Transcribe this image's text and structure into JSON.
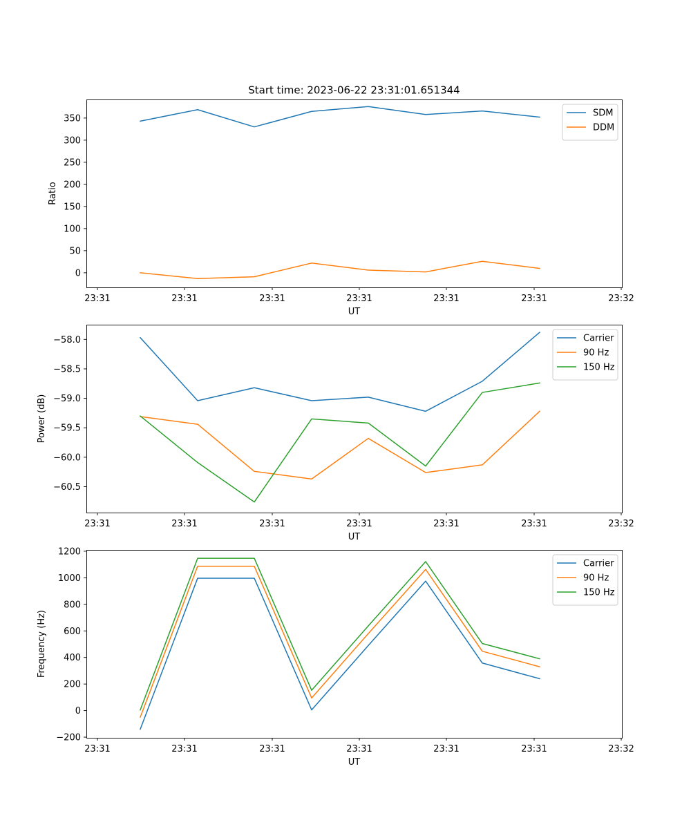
{
  "figure": {
    "title": "Start time: 2023-06-22 23:31:01.651344"
  },
  "chart_data": [
    {
      "type": "line",
      "title": "Start time: 2023-06-22 23:31:01.651344",
      "xlabel": "UT",
      "ylabel": "Ratio",
      "x_tick_labels": [
        "23:31",
        "23:31",
        "23:31",
        "23:31",
        "23:31",
        "23:31",
        "23:32"
      ],
      "ylim": [
        -33,
        392
      ],
      "y_ticks": [
        0,
        50,
        100,
        150,
        200,
        250,
        300,
        350
      ],
      "legend_position": "top-right",
      "grid": false,
      "series": [
        {
          "name": "SDM",
          "color": "#1f77b4",
          "values": [
            343,
            369,
            330,
            365,
            376,
            358,
            366,
            352
          ]
        },
        {
          "name": "DDM",
          "color": "#ff7f0e",
          "values": [
            0,
            -13,
            -9,
            22,
            6,
            2,
            26,
            10
          ]
        }
      ]
    },
    {
      "type": "line",
      "title": "",
      "xlabel": "UT",
      "ylabel": "Power (dB)",
      "x_tick_labels": [
        "23:31",
        "23:31",
        "23:31",
        "23:31",
        "23:31",
        "23:31",
        "23:32"
      ],
      "ylim": [
        -60.94,
        -57.75
      ],
      "y_ticks": [
        -60.5,
        -60.0,
        -59.5,
        -59.0,
        -58.5,
        -58.0
      ],
      "y_tick_labels": [
        "−60.5",
        "−60.0",
        "−59.5",
        "−59.0",
        "−58.5",
        "−58.0"
      ],
      "legend_position": "top-right",
      "grid": false,
      "series": [
        {
          "name": "Carrier",
          "color": "#1f77b4",
          "values": [
            -57.97,
            -59.04,
            -58.82,
            -59.04,
            -58.98,
            -59.22,
            -58.71,
            -57.88
          ]
        },
        {
          "name": "90 Hz",
          "color": "#ff7f0e",
          "values": [
            -59.31,
            -59.44,
            -60.24,
            -60.37,
            -59.68,
            -60.26,
            -60.13,
            -59.22
          ]
        },
        {
          "name": "150 Hz",
          "color": "#2ca02c",
          "values": [
            -59.3,
            -60.09,
            -60.76,
            -59.35,
            -59.42,
            -60.15,
            -58.9,
            -58.74
          ]
        }
      ]
    },
    {
      "type": "line",
      "title": "",
      "xlabel": "UT",
      "ylabel": "Frequency (Hz)",
      "x_tick_labels": [
        "23:31",
        "23:31",
        "23:31",
        "23:31",
        "23:31",
        "23:31",
        "23:32"
      ],
      "ylim": [
        -205,
        1210
      ],
      "y_ticks": [
        -200,
        0,
        200,
        400,
        600,
        800,
        1000,
        1200
      ],
      "y_tick_labels": [
        "−200",
        "0",
        "200",
        "400",
        "600",
        "800",
        "1000",
        "1200"
      ],
      "legend_position": "top-right",
      "grid": false,
      "series": [
        {
          "name": "Carrier",
          "color": "#1f77b4",
          "values": [
            -140,
            997,
            997,
            5,
            490,
            975,
            358,
            240
          ]
        },
        {
          "name": "90 Hz",
          "color": "#ff7f0e",
          "values": [
            -50,
            1087,
            1087,
            95,
            580,
            1063,
            447,
            330
          ]
        },
        {
          "name": "150 Hz",
          "color": "#2ca02c",
          "values": [
            5,
            1147,
            1147,
            153,
            638,
            1122,
            505,
            390
          ]
        }
      ]
    }
  ]
}
